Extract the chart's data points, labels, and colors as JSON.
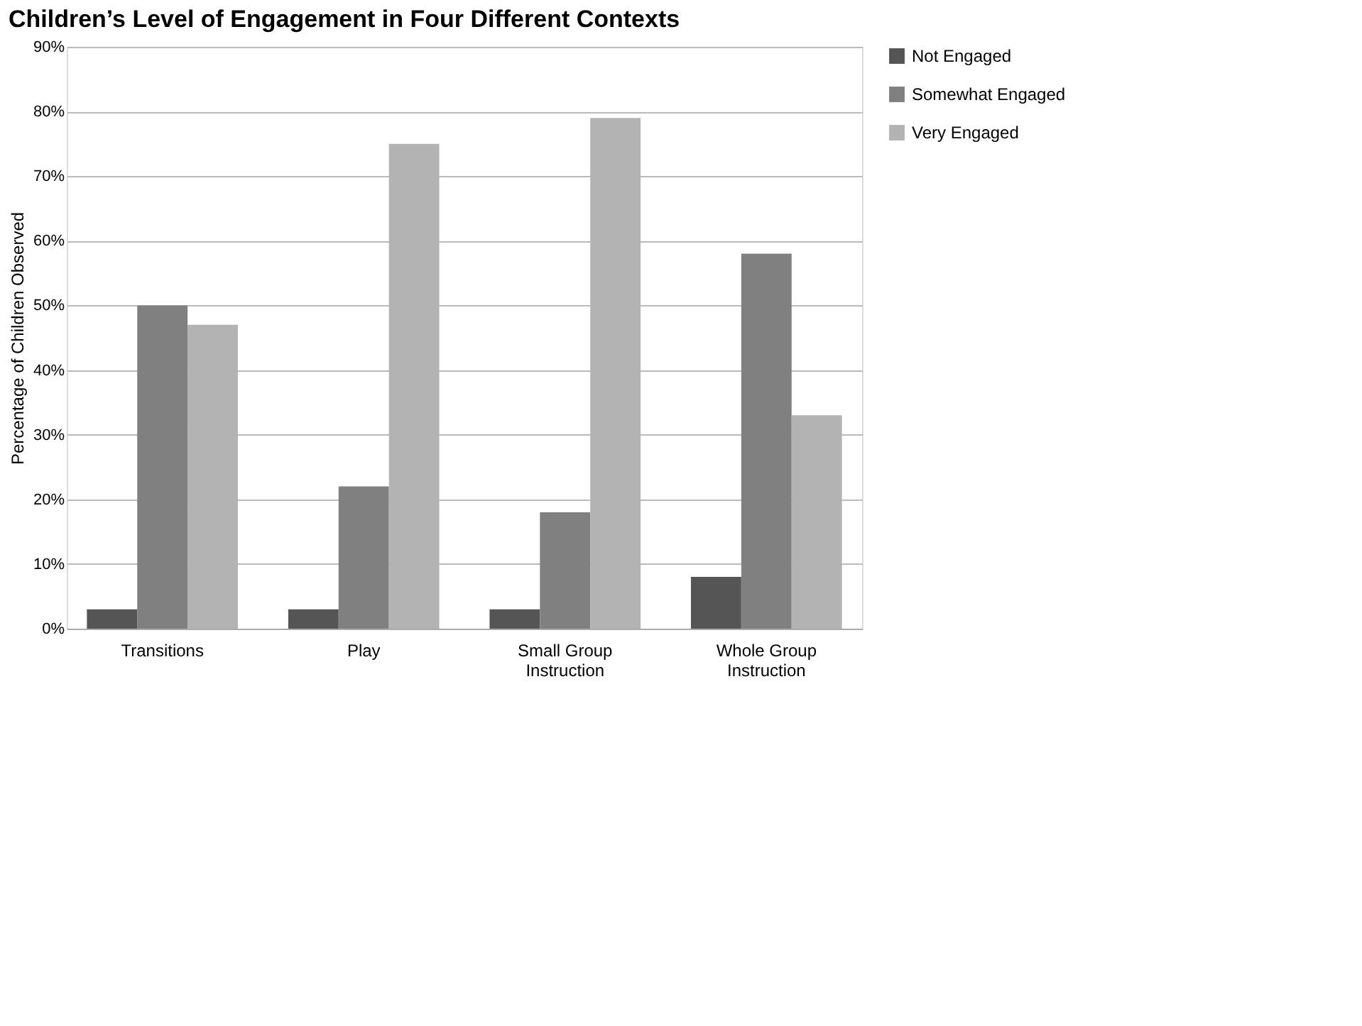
{
  "chart_data": {
    "type": "bar",
    "title": "Children’s Level of Engagement in Four Different Contexts",
    "ylabel": "Percentage of Children Observed",
    "categories": [
      "Transitions",
      "Play",
      "Small Group Instruction",
      "Whole Group Instruction"
    ],
    "series": [
      {
        "name": "Not Engaged",
        "color": "#555555",
        "values": [
          3,
          3,
          3,
          8
        ]
      },
      {
        "name": "Somewhat Engaged",
        "color": "#808080",
        "values": [
          50,
          22,
          18,
          58
        ]
      },
      {
        "name": "Very Engaged",
        "color": "#b3b3b3",
        "values": [
          47,
          75,
          79,
          33
        ]
      }
    ],
    "ylim": [
      0,
      90
    ],
    "yticks": [
      {
        "value": 0,
        "label": "0%"
      },
      {
        "value": 10,
        "label": "10%"
      },
      {
        "value": 20,
        "label": "20%"
      },
      {
        "value": 30,
        "label": "30%"
      },
      {
        "value": 40,
        "label": "40%"
      },
      {
        "value": 50,
        "label": "50%"
      },
      {
        "value": 60,
        "label": "60%"
      },
      {
        "value": 70,
        "label": "70%"
      },
      {
        "value": 80,
        "label": "80%"
      },
      {
        "value": 90,
        "label": "90%"
      }
    ],
    "grid": "y",
    "legend": "right"
  }
}
